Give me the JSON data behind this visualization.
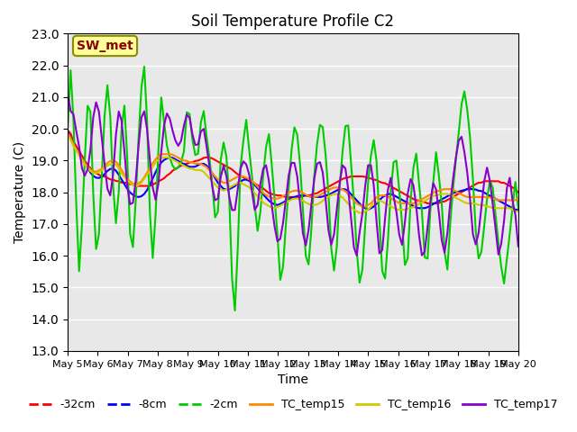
{
  "title": "Soil Temperature Profile C2",
  "xlabel": "Time",
  "ylabel": "Temperature (C)",
  "ylim": [
    13.0,
    23.0
  ],
  "yticks": [
    13.0,
    14.0,
    15.0,
    16.0,
    17.0,
    18.0,
    19.0,
    20.0,
    21.0,
    22.0,
    23.0
  ],
  "bg_color": "#e8e8e8",
  "annotation_text": "SW_met",
  "annotation_bg": "#ffff99",
  "annotation_border": "#8B8B00",
  "annotation_text_color": "#8B0000",
  "series": {
    "-32cm": {
      "color": "#ff0000",
      "lw": 1.5,
      "values": [
        19.95,
        19.85,
        19.6,
        19.45,
        19.3,
        19.15,
        19.0,
        18.85,
        18.75,
        18.65,
        18.6,
        18.55,
        18.5,
        18.5,
        18.45,
        18.4,
        18.4,
        18.35,
        18.35,
        18.3,
        18.3,
        18.3,
        18.25,
        18.25,
        18.2,
        18.2,
        18.2,
        18.2,
        18.2,
        18.2,
        18.25,
        18.3,
        18.35,
        18.4,
        18.45,
        18.55,
        18.6,
        18.7,
        18.75,
        18.8,
        18.85,
        18.9,
        18.9,
        18.95,
        18.95,
        19.0,
        19.0,
        19.05,
        19.1,
        19.1,
        19.1,
        19.05,
        19.0,
        18.95,
        18.9,
        18.85,
        18.8,
        18.75,
        18.7,
        18.6,
        18.55,
        18.5,
        18.45,
        18.4,
        18.35,
        18.3,
        18.25,
        18.2,
        18.15,
        18.1,
        18.0,
        17.95,
        17.95,
        17.9,
        17.9,
        17.9,
        17.85,
        17.85,
        17.85,
        17.85,
        17.85,
        17.85,
        17.85,
        17.9,
        17.9,
        17.9,
        17.95,
        17.95,
        18.0,
        18.05,
        18.1,
        18.15,
        18.2,
        18.25,
        18.3,
        18.35,
        18.4,
        18.45,
        18.45,
        18.5,
        18.5,
        18.5,
        18.5,
        18.5,
        18.5,
        18.45,
        18.45,
        18.4,
        18.4,
        18.35,
        18.3,
        18.3,
        18.25,
        18.2,
        18.15,
        18.1,
        18.05,
        18.0,
        17.95,
        17.9,
        17.85,
        17.8,
        17.75,
        17.75,
        17.7,
        17.7,
        17.65,
        17.65,
        17.65,
        17.65,
        17.65,
        17.7,
        17.7,
        17.75,
        17.8,
        17.85,
        17.9,
        17.95,
        18.0,
        18.05,
        18.1,
        18.15,
        18.2,
        18.25,
        18.3,
        18.3,
        18.35,
        18.35,
        18.35,
        18.35,
        18.35,
        18.35,
        18.3,
        18.3,
        18.25,
        18.2,
        18.15,
        18.1,
        18.0
      ]
    },
    "-8cm": {
      "color": "#0000ff",
      "lw": 1.5,
      "values": [
        19.9,
        19.7,
        19.5,
        19.35,
        19.2,
        19.05,
        18.9,
        18.75,
        18.6,
        18.5,
        18.45,
        18.45,
        18.5,
        18.6,
        18.7,
        18.75,
        18.75,
        18.65,
        18.5,
        18.35,
        18.2,
        18.05,
        17.95,
        17.9,
        17.85,
        17.85,
        17.9,
        18.0,
        18.15,
        18.35,
        18.55,
        18.75,
        18.9,
        19.0,
        19.05,
        19.1,
        19.1,
        19.05,
        19.0,
        18.95,
        18.9,
        18.85,
        18.8,
        18.8,
        18.8,
        18.85,
        18.9,
        18.9,
        18.85,
        18.75,
        18.6,
        18.45,
        18.3,
        18.2,
        18.1,
        18.1,
        18.1,
        18.15,
        18.2,
        18.3,
        18.35,
        18.4,
        18.4,
        18.35,
        18.3,
        18.2,
        18.1,
        18.0,
        17.9,
        17.8,
        17.7,
        17.65,
        17.6,
        17.6,
        17.65,
        17.7,
        17.75,
        17.8,
        17.85,
        17.85,
        17.9,
        17.9,
        17.9,
        17.9,
        17.85,
        17.85,
        17.85,
        17.85,
        17.85,
        17.9,
        17.9,
        17.95,
        18.0,
        18.05,
        18.1,
        18.1,
        18.1,
        18.05,
        17.95,
        17.85,
        17.75,
        17.65,
        17.55,
        17.5,
        17.45,
        17.5,
        17.55,
        17.65,
        17.75,
        17.85,
        17.9,
        17.95,
        17.95,
        17.9,
        17.85,
        17.8,
        17.75,
        17.7,
        17.65,
        17.6,
        17.55,
        17.5,
        17.5,
        17.5,
        17.5,
        17.55,
        17.6,
        17.65,
        17.7,
        17.75,
        17.8,
        17.85,
        17.9,
        17.95,
        18.0,
        18.0,
        18.05,
        18.05,
        18.1,
        18.1,
        18.1,
        18.1,
        18.05,
        18.05,
        18.0,
        17.95,
        17.9,
        17.85,
        17.8,
        17.75,
        17.7,
        17.65,
        17.6,
        17.55,
        17.5,
        17.45,
        17.45
      ]
    },
    "-2cm": {
      "color": "#00cc00",
      "lw": 1.5,
      "values": [
        20.1,
        21.9,
        20.2,
        17.35,
        15.25,
        17.3,
        19.4,
        21.1,
        20.35,
        17.0,
        15.85,
        17.1,
        19.35,
        21.15,
        21.55,
        19.35,
        17.05,
        17.0,
        19.35,
        21.1,
        20.1,
        17.05,
        15.9,
        17.25,
        19.35,
        21.1,
        22.2,
        20.6,
        17.5,
        15.85,
        17.25,
        19.35,
        21.05,
        20.15,
        19.4,
        19.05,
        18.8,
        18.7,
        18.8,
        19.0,
        19.4,
        21.05,
        20.15,
        19.35,
        19.05,
        19.35,
        21.0,
        20.1,
        19.35,
        18.75,
        17.5,
        16.7,
        18.75,
        19.65,
        19.35,
        18.4,
        15.55,
        14.0,
        15.9,
        18.75,
        19.6,
        20.3,
        19.35,
        18.5,
        17.5,
        16.7,
        17.5,
        18.75,
        19.6,
        19.9,
        18.5,
        17.5,
        16.3,
        14.65,
        16.3,
        17.5,
        18.75,
        19.9,
        20.2,
        19.35,
        18.2,
        16.3,
        15.45,
        16.3,
        18.2,
        19.35,
        20.1,
        20.2,
        19.35,
        18.2,
        16.3,
        15.5,
        16.3,
        18.2,
        19.35,
        20.15,
        20.1,
        18.7,
        17.5,
        15.8,
        14.95,
        15.8,
        17.5,
        18.7,
        19.4,
        19.8,
        18.35,
        16.1,
        14.95,
        15.65,
        17.5,
        18.7,
        19.35,
        18.35,
        17.5,
        15.8,
        15.45,
        17.5,
        18.65,
        19.35,
        18.35,
        17.5,
        15.95,
        15.9,
        17.5,
        18.35,
        19.35,
        18.4,
        17.5,
        15.8,
        15.5,
        17.5,
        18.35,
        19.35,
        20.15,
        21.15,
        21.2,
        20.15,
        19.35,
        17.5,
        16.0,
        15.8,
        16.6,
        17.5,
        18.35,
        18.4,
        17.5,
        16.6,
        15.8,
        15.0,
        15.8,
        16.6,
        17.5,
        18.35,
        17.5
      ]
    },
    "TC_temp15": {
      "color": "#ff8800",
      "lw": 1.5,
      "values": [
        19.85,
        19.7,
        19.5,
        19.35,
        19.2,
        19.05,
        18.9,
        18.8,
        18.7,
        18.65,
        18.65,
        18.7,
        18.75,
        18.85,
        18.95,
        19.0,
        19.0,
        18.95,
        18.8,
        18.65,
        18.5,
        18.4,
        18.3,
        18.25,
        18.25,
        18.3,
        18.4,
        18.55,
        18.7,
        18.85,
        19.0,
        19.1,
        19.2,
        19.2,
        19.2,
        19.2,
        19.2,
        19.15,
        19.1,
        19.05,
        19.0,
        19.0,
        18.95,
        18.95,
        18.9,
        18.9,
        18.9,
        18.85,
        18.8,
        18.7,
        18.6,
        18.5,
        18.4,
        18.35,
        18.3,
        18.3,
        18.35,
        18.4,
        18.45,
        18.5,
        18.5,
        18.5,
        18.45,
        18.4,
        18.35,
        18.25,
        18.15,
        18.05,
        17.95,
        17.9,
        17.85,
        17.8,
        17.8,
        17.8,
        17.85,
        17.9,
        17.95,
        18.0,
        18.05,
        18.05,
        18.05,
        18.0,
        17.95,
        17.9,
        17.85,
        17.85,
        17.85,
        17.9,
        17.95,
        18.0,
        18.05,
        18.1,
        18.15,
        18.15,
        18.15,
        18.1,
        18.05,
        17.95,
        17.85,
        17.75,
        17.65,
        17.6,
        17.55,
        17.55,
        17.6,
        17.65,
        17.75,
        17.85,
        17.9,
        17.9,
        17.9,
        17.85,
        17.8,
        17.75,
        17.7,
        17.65,
        17.65,
        17.65,
        17.65,
        17.65,
        17.65,
        17.7,
        17.75,
        17.8,
        17.85,
        17.9,
        17.95,
        18.0,
        18.05,
        18.05,
        18.1,
        18.1,
        18.1,
        18.1,
        18.05,
        18.0,
        17.95,
        17.9,
        17.85,
        17.85,
        17.85,
        17.85,
        17.85,
        17.85,
        17.85,
        17.85,
        17.85,
        17.8,
        17.8,
        17.75,
        17.75,
        17.75,
        17.75,
        17.75,
        17.75,
        17.75,
        17.8
      ]
    },
    "TC_temp16": {
      "color": "#cccc00",
      "lw": 1.5,
      "values": [
        19.8,
        19.65,
        19.45,
        19.3,
        19.15,
        19.0,
        18.85,
        18.75,
        18.65,
        18.6,
        18.6,
        18.65,
        18.7,
        18.8,
        18.85,
        18.9,
        18.9,
        18.85,
        18.7,
        18.55,
        18.45,
        18.35,
        18.25,
        18.2,
        18.2,
        18.25,
        18.35,
        18.5,
        18.6,
        18.75,
        18.9,
        19.0,
        19.05,
        19.1,
        19.1,
        19.1,
        19.05,
        19.0,
        18.95,
        18.9,
        18.85,
        18.8,
        18.75,
        18.75,
        18.7,
        18.7,
        18.7,
        18.65,
        18.55,
        18.45,
        18.35,
        18.25,
        18.15,
        18.1,
        18.05,
        18.1,
        18.15,
        18.2,
        18.25,
        18.3,
        18.3,
        18.25,
        18.2,
        18.15,
        18.05,
        17.95,
        17.85,
        17.75,
        17.65,
        17.6,
        17.55,
        17.5,
        17.5,
        17.55,
        17.6,
        17.65,
        17.7,
        17.75,
        17.8,
        17.8,
        17.8,
        17.75,
        17.7,
        17.65,
        17.6,
        17.6,
        17.6,
        17.65,
        17.7,
        17.8,
        17.85,
        17.9,
        17.95,
        17.95,
        17.9,
        17.85,
        17.75,
        17.65,
        17.55,
        17.45,
        17.4,
        17.35,
        17.35,
        17.4,
        17.45,
        17.55,
        17.65,
        17.7,
        17.75,
        17.7,
        17.65,
        17.6,
        17.55,
        17.5,
        17.45,
        17.45,
        17.45,
        17.45,
        17.5,
        17.5,
        17.55,
        17.6,
        17.65,
        17.7,
        17.75,
        17.8,
        17.85,
        17.9,
        17.9,
        17.95,
        17.95,
        17.95,
        17.95,
        17.9,
        17.85,
        17.8,
        17.75,
        17.7,
        17.65,
        17.65,
        17.65,
        17.65,
        17.6,
        17.6,
        17.6,
        17.55,
        17.55,
        17.5,
        17.5,
        17.5,
        17.5,
        17.5,
        17.5,
        17.5,
        17.45,
        17.4,
        17.4
      ]
    },
    "TC_temp17": {
      "color": "#8800cc",
      "lw": 1.5,
      "values": [
        21.1,
        20.55,
        20.45,
        19.9,
        19.4,
        18.7,
        18.5,
        18.75,
        19.45,
        20.55,
        20.9,
        20.45,
        19.5,
        18.7,
        17.9,
        17.9,
        18.85,
        20.25,
        20.7,
        20.0,
        18.85,
        17.8,
        17.5,
        17.8,
        18.85,
        20.05,
        20.65,
        20.45,
        19.45,
        18.5,
        17.7,
        17.85,
        18.9,
        19.9,
        20.5,
        20.45,
        20.05,
        19.7,
        19.45,
        19.5,
        20.0,
        20.45,
        20.45,
        19.9,
        19.5,
        19.45,
        19.9,
        20.05,
        19.5,
        18.85,
        18.2,
        17.75,
        17.8,
        18.5,
        18.85,
        18.5,
        17.8,
        17.4,
        17.45,
        18.2,
        18.85,
        19.0,
        18.85,
        18.5,
        17.9,
        17.3,
        17.7,
        18.5,
        18.85,
        18.85,
        18.1,
        17.3,
        16.7,
        16.3,
        16.7,
        17.3,
        18.2,
        18.85,
        19.0,
        18.85,
        18.1,
        17.1,
        16.2,
        16.5,
        17.3,
        18.2,
        18.85,
        19.0,
        18.85,
        18.1,
        17.0,
        16.3,
        16.5,
        17.3,
        18.2,
        18.85,
        18.85,
        18.2,
        17.3,
        16.3,
        15.95,
        16.7,
        17.3,
        18.2,
        18.85,
        18.85,
        18.2,
        17.0,
        16.0,
        16.2,
        17.3,
        18.2,
        18.5,
        17.75,
        17.3,
        16.5,
        16.3,
        17.3,
        18.2,
        18.5,
        18.1,
        17.3,
        16.3,
        15.85,
        16.3,
        17.3,
        18.0,
        18.5,
        17.75,
        17.0,
        16.0,
        16.2,
        17.3,
        18.1,
        18.85,
        19.45,
        19.9,
        19.5,
        18.85,
        18.2,
        16.85,
        16.3,
        16.5,
        17.3,
        18.2,
        18.85,
        18.5,
        17.75,
        17.0,
        16.0,
        16.3,
        17.0,
        18.1,
        18.5,
        17.75,
        17.3,
        16.3
      ]
    }
  },
  "xtick_labels": [
    "May 5",
    "May 6",
    "May 7",
    "May 8",
    "May 9",
    "May 10",
    "May 11",
    "May 12",
    "May 13",
    "May 14",
    "May 15",
    "May 16",
    "May 17",
    "May 18",
    "May 19",
    "May 20"
  ],
  "n_points": 160
}
